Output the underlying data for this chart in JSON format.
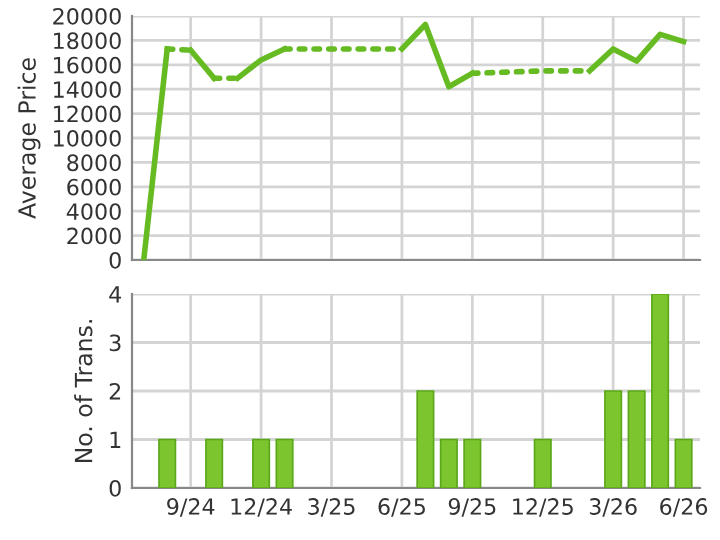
{
  "chart_data": [
    {
      "type": "line",
      "ylabel": "Average Price",
      "xlim": [
        "2024-06-16",
        "2026-06-22"
      ],
      "ylim": [
        0,
        20000
      ],
      "yticks": [
        0,
        2000,
        4000,
        6000,
        8000,
        10000,
        12000,
        14000,
        16000,
        18000,
        20000
      ],
      "xticks": [
        {
          "value": "2024-09",
          "label": null
        },
        {
          "value": "2024-12",
          "label": null
        },
        {
          "value": "2025-03",
          "label": null
        },
        {
          "value": "2025-06",
          "label": null
        },
        {
          "value": "2025-09",
          "label": null
        },
        {
          "value": "2025-12",
          "label": null
        },
        {
          "value": "2026-03",
          "label": null
        },
        {
          "value": "2026-06",
          "label": null
        }
      ],
      "tick_labels": "y",
      "grid": true,
      "legend": false,
      "marker": "none",
      "series": [
        {
          "color": "#66bb22",
          "line_style": "solid",
          "x": [
            "2024-07",
            "2024-08"
          ],
          "values": [
            0,
            17300
          ]
        },
        {
          "color": "#66bb22",
          "line_style": "dotted",
          "x": [
            "2024-08",
            "2024-09"
          ],
          "values": [
            17300,
            17200
          ]
        },
        {
          "color": "#66bb22",
          "line_style": "solid",
          "x": [
            "2024-09",
            "2024-10"
          ],
          "values": [
            17200,
            14900
          ]
        },
        {
          "color": "#66bb22",
          "line_style": "dotted",
          "x": [
            "2024-10",
            "2024-11"
          ],
          "values": [
            14900,
            14900
          ]
        },
        {
          "color": "#66bb22",
          "line_style": "solid",
          "x": [
            "2024-11",
            "2024-12",
            "2025-01"
          ],
          "values": [
            14900,
            16400,
            17300
          ]
        },
        {
          "color": "#66bb22",
          "line_style": "dotted",
          "x": [
            "2025-01",
            "2025-06"
          ],
          "values": [
            17300,
            17300
          ]
        },
        {
          "color": "#66bb22",
          "line_style": "solid",
          "x": [
            "2025-06",
            "2025-07",
            "2025-08",
            "2025-09"
          ],
          "values": [
            17300,
            19300,
            14200,
            15300
          ]
        },
        {
          "color": "#66bb22",
          "line_style": "dotted",
          "x": [
            "2025-09",
            "2025-12",
            "2026-02"
          ],
          "values": [
            15300,
            15500,
            15500
          ]
        },
        {
          "color": "#66bb22",
          "line_style": "solid",
          "x": [
            "2026-02",
            "2026-03",
            "2026-04",
            "2026-05",
            "2026-06"
          ],
          "values": [
            15500,
            17300,
            16300,
            18500,
            17900
          ]
        }
      ]
    },
    {
      "type": "bar",
      "ylabel": "No. of Trans.",
      "xlim": [
        "2024-06-16",
        "2026-06-22"
      ],
      "ylim": [
        0,
        4
      ],
      "yticks": [
        0,
        1,
        2,
        3,
        4
      ],
      "xticks": [
        {
          "value": "2024-09",
          "label": "9/24"
        },
        {
          "value": "2024-12",
          "label": "12/24"
        },
        {
          "value": "2025-03",
          "label": "3/25"
        },
        {
          "value": "2025-06",
          "label": "6/25"
        },
        {
          "value": "2025-09",
          "label": "9/25"
        },
        {
          "value": "2025-12",
          "label": "12/25"
        },
        {
          "value": "2026-03",
          "label": "3/26"
        },
        {
          "value": "2026-06",
          "label": "6/26"
        }
      ],
      "grid": true,
      "legend": false,
      "x": [
        "2024-08",
        "2024-10",
        "2024-12",
        "2025-01",
        "2025-07",
        "2025-08",
        "2025-09",
        "2025-12",
        "2026-03",
        "2026-04",
        "2026-05",
        "2026-06"
      ],
      "series": [
        {
          "color": "#7dc52e",
          "values": [
            1,
            1,
            1,
            1,
            2,
            1,
            1,
            1,
            2,
            2,
            4,
            1
          ]
        }
      ]
    }
  ]
}
